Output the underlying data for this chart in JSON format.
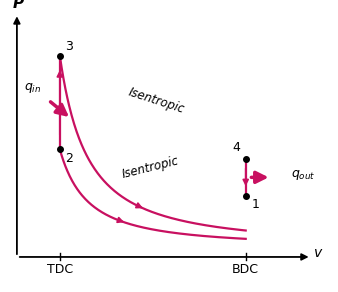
{
  "color": "#C81060",
  "background_color": "#ffffff",
  "points": {
    "1": [
      0.78,
      0.22
    ],
    "2": [
      0.13,
      0.42
    ],
    "3": [
      0.13,
      0.82
    ],
    "4": [
      0.78,
      0.38
    ]
  },
  "gamma": 1.35,
  "xlabel": "v",
  "ylabel": "P"
}
